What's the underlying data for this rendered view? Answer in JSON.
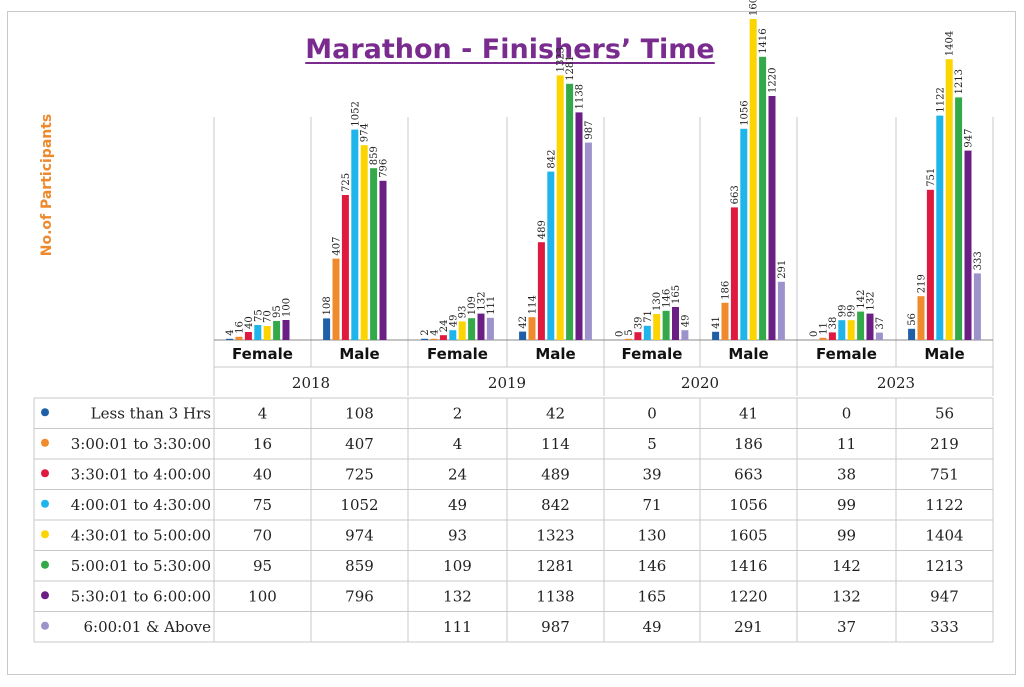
{
  "chart_data": {
    "type": "bar",
    "title": "Marathon - Finishers’ Time",
    "ylabel": "No.of Participants",
    "years": [
      "2018",
      "2019",
      "2020",
      "2023"
    ],
    "genders": [
      "Female",
      "Male"
    ],
    "categories": [
      "2018 Female",
      "2018 Male",
      "2019 Female",
      "2019 Male",
      "2020 Female",
      "2020 Male",
      "2023 Female",
      "2023 Male"
    ],
    "ylim": [
      0,
      1700
    ],
    "series": [
      {
        "name": "Less than 3 Hrs",
        "color": "#1f5fa8",
        "values": [
          4,
          108,
          2,
          42,
          0,
          41,
          0,
          56
        ]
      },
      {
        "name": "3:00:01 to 3:30:00",
        "color": "#ef8a2d",
        "values": [
          16,
          407,
          4,
          114,
          5,
          186,
          11,
          219
        ]
      },
      {
        "name": "3:30:01 to 4:00:00",
        "color": "#e0193f",
        "values": [
          40,
          725,
          24,
          489,
          39,
          663,
          38,
          751
        ]
      },
      {
        "name": "4:00:01 to 4:30:00",
        "color": "#1fb5ea",
        "values": [
          75,
          1052,
          49,
          842,
          71,
          1056,
          99,
          1122
        ]
      },
      {
        "name": "4:30:01 to 5:00:00",
        "color": "#fcd400",
        "values": [
          70,
          974,
          93,
          1323,
          130,
          1605,
          99,
          1404
        ]
      },
      {
        "name": "5:00:01 to 5:30:00",
        "color": "#34a94a",
        "values": [
          95,
          859,
          109,
          1281,
          146,
          1416,
          142,
          1213
        ]
      },
      {
        "name": "5:30:01 to 6:00:00",
        "color": "#6b1f85",
        "values": [
          100,
          796,
          132,
          1138,
          165,
          1220,
          132,
          947
        ]
      },
      {
        "name": "6:00:01 & Above",
        "color": "#9e92cc",
        "values": [
          null,
          null,
          111,
          987,
          49,
          291,
          37,
          333
        ]
      }
    ]
  }
}
